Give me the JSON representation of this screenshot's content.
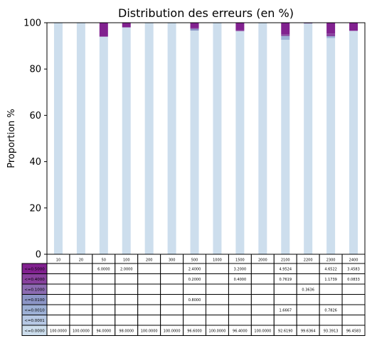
{
  "chart_data": {
    "type": "bar",
    "stacked": true,
    "title": "Distribution des erreurs (en %)",
    "xlabel": "",
    "ylabel": "Proportion %",
    "ylim": [
      0,
      100
    ],
    "yticks": [
      0,
      20,
      40,
      60,
      80,
      100
    ],
    "grid": false,
    "legend": "table rows below the plot",
    "categories": [
      "10",
      "20",
      "50",
      "100",
      "200",
      "300",
      "500",
      "1000",
      "1500",
      "2000",
      "2100",
      "2200",
      "2300",
      "2400"
    ],
    "series": [
      {
        "name": "<=0.0000",
        "color": "#cddeed",
        "values": [
          100.0,
          100.0,
          94.0,
          98.0,
          100.0,
          100.0,
          96.6,
          100.0,
          96.4,
          100.0,
          92.619,
          99.6364,
          93.3913,
          96.4583
        ],
        "labels": [
          "100.0000",
          "100.0000",
          "94.0000",
          "98.0000",
          "100.0000",
          "100.0000",
          "96.6000",
          "100.0000",
          "96.4000",
          "100.0000",
          "92.6190",
          "99.6364",
          "93.3913",
          "96.4583"
        ]
      },
      {
        "name": "<=0.0001",
        "color": "#b6c8e4",
        "values": [
          0,
          0,
          0,
          0,
          0,
          0,
          0,
          0,
          0,
          0,
          0,
          0,
          0,
          0
        ],
        "labels": [
          "",
          "",
          "",
          "",
          "",
          "",
          "",
          "",
          "",
          "",
          "",
          "",
          "",
          ""
        ]
      },
      {
        "name": "<=0.0010",
        "color": "#9db0d5",
        "values": [
          0,
          0,
          0,
          0,
          0,
          0,
          0,
          0,
          0,
          0,
          1.6667,
          0,
          0.7826,
          0
        ],
        "labels": [
          "",
          "",
          "",
          "",
          "",
          "",
          "",
          "",
          "",
          "",
          "1.6667",
          "",
          "0.7826",
          ""
        ]
      },
      {
        "name": "<=0.0100",
        "color": "#8c95c6",
        "values": [
          0,
          0,
          0,
          0,
          0,
          0,
          0.8,
          0,
          0,
          0,
          0,
          0,
          0,
          0
        ],
        "labels": [
          "",
          "",
          "",
          "",
          "",
          "",
          "0.8000",
          "",
          "",
          "",
          "",
          "",
          "",
          ""
        ]
      },
      {
        "name": "<=0.1000",
        "color": "#8c6bb1",
        "values": [
          0,
          0,
          0,
          0,
          0,
          0,
          0,
          0,
          0,
          0,
          0,
          0.3636,
          0,
          0
        ],
        "labels": [
          "",
          "",
          "",
          "",
          "",
          "",
          "",
          "",
          "",
          "",
          "",
          "0.3636",
          "",
          ""
        ]
      },
      {
        "name": "<=0.4000",
        "color": "#88419d",
        "values": [
          0,
          0,
          0,
          0,
          0,
          0,
          0.2,
          0,
          0.4,
          0,
          0.7619,
          0,
          1.1739,
          0.0833
        ],
        "labels": [
          "",
          "",
          "",
          "",
          "",
          "",
          "0.2000",
          "",
          "0.4000",
          "",
          "0.7619",
          "",
          "1.1739",
          "0.0833"
        ]
      },
      {
        "name": "<=0.5000",
        "color": "#81218f",
        "values": [
          0,
          0,
          6.0,
          2.0,
          0,
          0,
          2.4,
          0,
          3.2,
          0,
          4.9524,
          0,
          4.6522,
          3.4583
        ],
        "labels": [
          "",
          "",
          "6.0000",
          "2.0000",
          "",
          "",
          "2.4000",
          "",
          "3.2000",
          "",
          "4.9524",
          "",
          "4.6522",
          "3.4583"
        ]
      }
    ]
  }
}
